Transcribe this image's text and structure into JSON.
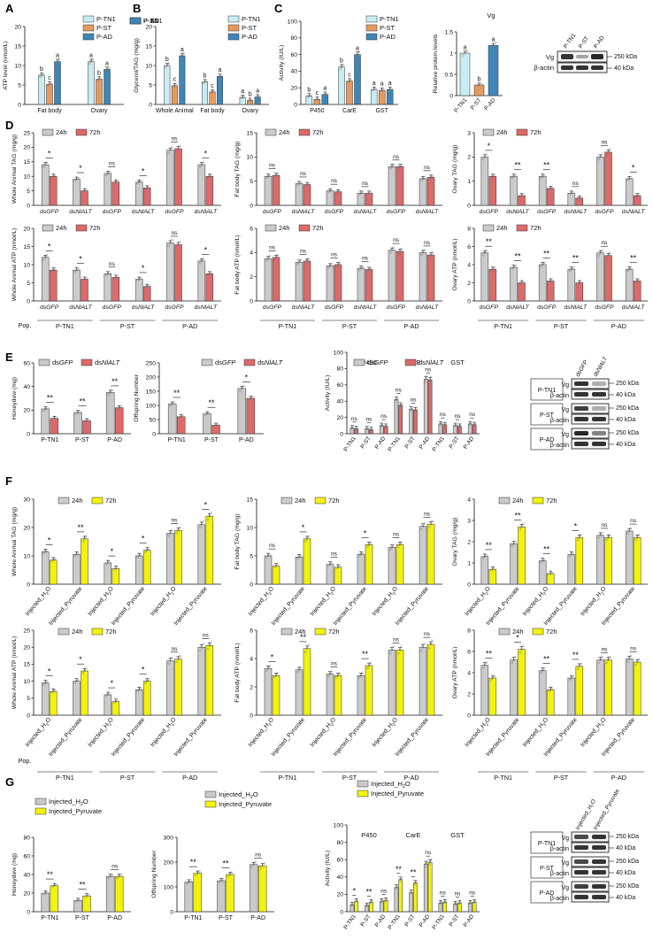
{
  "colors": {
    "tn1": "#c9ecf2",
    "st": "#e49a60",
    "ad": "#3f86b8",
    "h24": "#cbcbcb",
    "h72_red": "#dc6a6a",
    "h72_yel": "#f2f20c",
    "gfp": "#c9c9c9",
    "nialt": "#dc6a6a",
    "h2o": "#c9c9c9",
    "pyr": "#f2f20c"
  },
  "panels": {
    "A": "A",
    "B": "B",
    "C": "C",
    "D": "D",
    "E": "E",
    "F": "F",
    "G": "G"
  },
  "common": {
    "pop": "Pop.",
    "sig1": "*",
    "sig2": "**",
    "ns": "ns",
    "kda250": "250 kDa",
    "kda40": "40 kDa",
    "vg": "Vg",
    "actin": "β-actin"
  },
  "chart_data": [
    {
      "id": "A",
      "type": "bar",
      "ylabel": "ATP level (nmol/L)",
      "ylim": [
        0,
        20
      ],
      "yticks": [
        0,
        5,
        10,
        15,
        20
      ],
      "categories": [
        "Fat body",
        "Ovary"
      ],
      "series": [
        {
          "name": "P-TN1",
          "values": [
            7.5,
            11
          ]
        },
        {
          "name": "P-ST",
          "values": [
            5.2,
            6.5
          ]
        },
        {
          "name": "P-AD",
          "values": [
            11,
            9
          ]
        }
      ],
      "letters": [
        [
          "b",
          "c",
          "a"
        ],
        [
          "a",
          "b",
          "a"
        ]
      ]
    },
    {
      "id": "B",
      "type": "bar",
      "ylabel": "Glycerol/TAG (mg/g)",
      "ylim": [
        0,
        20
      ],
      "yticks": [
        0,
        5,
        10,
        15,
        20
      ],
      "categories": [
        "Whole Animal",
        "Fat body",
        "Ovary"
      ],
      "series": [
        {
          "name": "P-TN1",
          "values": [
            10,
            5.8,
            1.8
          ]
        },
        {
          "name": "P-ST",
          "values": [
            4.8,
            3.2,
            1.0
          ]
        },
        {
          "name": "P-AD",
          "values": [
            12.5,
            7.2,
            1.9
          ]
        }
      ],
      "letters": [
        [
          "b",
          "c",
          "a"
        ],
        [
          "b",
          "c",
          "a"
        ],
        [
          "a",
          "b",
          "a"
        ]
      ]
    },
    {
      "id": "C1",
      "type": "bar",
      "ylabel": "Activity (IU/L)",
      "ylim": [
        0,
        100
      ],
      "yticks": [
        0,
        20,
        40,
        60,
        80,
        100
      ],
      "categories": [
        "P450",
        "CarE",
        "GST"
      ],
      "series": [
        {
          "name": "P-TN1",
          "values": [
            10,
            45,
            18
          ]
        },
        {
          "name": "P-ST",
          "values": [
            6,
            28,
            17
          ]
        },
        {
          "name": "P-AD",
          "values": [
            12,
            60,
            18
          ]
        }
      ],
      "letters": [
        [
          "b",
          "c",
          "a"
        ],
        [
          "b",
          "c",
          "a"
        ],
        [
          "a",
          "a",
          "a"
        ]
      ]
    },
    {
      "id": "C2",
      "type": "bar",
      "title": "Vg",
      "ylabel": "Relative protein levels",
      "ylim": [
        0,
        1.5
      ],
      "yticks": [
        0.0,
        0.5,
        1.0,
        1.5
      ],
      "categories": [
        "P-TN1",
        "P-ST",
        "P-AD"
      ],
      "values": [
        1.0,
        0.25,
        1.18
      ],
      "letters": [
        "a",
        "b",
        "a"
      ]
    },
    {
      "id": "D1",
      "type": "bar",
      "ylabel": "Whole Animal TAG (mg/g)",
      "ylim": [
        0,
        25
      ],
      "yticks": [
        0,
        5,
        10,
        15,
        20,
        25
      ],
      "categories": [
        "dsGFP",
        "dsNlALT",
        "dsGFP",
        "dsNlALT",
        "dsGFP",
        "dsNlALT"
      ],
      "series": [
        {
          "name": "24h",
          "values": [
            14,
            9,
            11,
            8,
            19,
            14
          ]
        },
        {
          "name": "72h",
          "values": [
            10,
            5,
            8,
            6,
            19.5,
            10
          ]
        }
      ],
      "sig": [
        "*",
        "*",
        "ns",
        "*",
        "ns",
        "*"
      ]
    },
    {
      "id": "D2",
      "type": "bar",
      "ylabel": "Fat body TAG (mg/g)",
      "ylim": [
        0,
        15
      ],
      "yticks": [
        0,
        5,
        10,
        15
      ],
      "categories": [
        "dsGFP",
        "dsNlALT",
        "dsGFP",
        "dsNlALT",
        "dsGFP",
        "dsNlALT"
      ],
      "series": [
        {
          "name": "24h",
          "values": [
            6,
            4.5,
            3,
            2.5,
            8,
            5.5
          ]
        },
        {
          "name": "72h",
          "values": [
            6.2,
            4.3,
            2.8,
            2.5,
            8,
            5.8
          ]
        }
      ],
      "sig": [
        "ns",
        "ns",
        "ns",
        "ns",
        "ns",
        "ns"
      ]
    },
    {
      "id": "D3",
      "type": "bar",
      "ylabel": "Ovary TAG (mg/g)",
      "ylim": [
        0,
        3
      ],
      "yticks": [
        0,
        1,
        2,
        3
      ],
      "categories": [
        "dsGFP",
        "dsNlALT",
        "dsGFP",
        "dsNlALT",
        "dsGFP",
        "dsNlALT"
      ],
      "series": [
        {
          "name": "24h",
          "values": [
            2.0,
            1.2,
            1.2,
            0.5,
            2.0,
            1.1
          ]
        },
        {
          "name": "72h",
          "values": [
            1.2,
            0.4,
            0.7,
            0.3,
            2.2,
            0.4
          ]
        }
      ],
      "sig": [
        "*",
        "**",
        "**",
        "ns",
        "ns",
        "*"
      ]
    },
    {
      "id": "D4",
      "type": "bar",
      "ylabel": "Whole Animal ATP (nmol/L)",
      "ylim": [
        0,
        20
      ],
      "yticks": [
        0,
        5,
        10,
        15,
        20
      ],
      "categories": [
        "dsGFP",
        "dsNlALT",
        "dsGFP",
        "dsNlALT",
        "dsGFP",
        "dsNlALT"
      ],
      "series": [
        {
          "name": "24h",
          "values": [
            12,
            8.5,
            7.5,
            6,
            16,
            11
          ]
        },
        {
          "name": "72h",
          "values": [
            8.5,
            6,
            6.5,
            4,
            15.5,
            7.5
          ]
        }
      ],
      "sig": [
        "*",
        "*",
        "ns",
        "*",
        "ns",
        "*"
      ]
    },
    {
      "id": "D5",
      "type": "bar",
      "ylabel": "Fat body ATP (nmol/L)",
      "ylim": [
        0,
        6
      ],
      "yticks": [
        0,
        2,
        4,
        6
      ],
      "categories": [
        "dsGFP",
        "dsNlALT",
        "dsGFP",
        "dsNlALT",
        "dsGFP",
        "dsNlALT"
      ],
      "series": [
        {
          "name": "24h",
          "values": [
            3.5,
            3.2,
            2.9,
            2.7,
            4.2,
            4.0
          ]
        },
        {
          "name": "72h",
          "values": [
            3.6,
            3.3,
            3.0,
            2.6,
            4.1,
            3.8
          ]
        }
      ],
      "sig": [
        "ns",
        "ns",
        "ns",
        "ns",
        "ns",
        "ns"
      ]
    },
    {
      "id": "D6",
      "type": "bar",
      "ylabel": "Ovary ATP (nmol/L)",
      "ylim": [
        0,
        8
      ],
      "yticks": [
        0,
        2,
        4,
        6,
        8
      ],
      "categories": [
        "dsGFP",
        "dsNlALT",
        "dsGFP",
        "dsNlALT",
        "dsGFP",
        "dsNlALT"
      ],
      "series": [
        {
          "name": "24h",
          "values": [
            5.3,
            3.7,
            4.0,
            3.5,
            5.3,
            3.5
          ]
        },
        {
          "name": "72h",
          "values": [
            3.5,
            2.0,
            2.2,
            2.0,
            5.0,
            2.2
          ]
        }
      ],
      "sig": [
        "**",
        "**",
        "**",
        "**",
        "ns",
        "**"
      ]
    },
    {
      "id": "E1",
      "type": "bar",
      "ylabel": "Honeydew (mg)",
      "ylim": [
        0,
        60
      ],
      "yticks": [
        0,
        20,
        40,
        60
      ],
      "categories": [
        "P-TN1",
        "P-ST",
        "P-AD"
      ],
      "series": [
        {
          "name": "dsGFP",
          "values": [
            21,
            18,
            35
          ]
        },
        {
          "name": "dsNlALT",
          "values": [
            13,
            11,
            22
          ]
        }
      ],
      "sig": [
        "**",
        "**",
        "**"
      ]
    },
    {
      "id": "E2",
      "type": "bar",
      "ylabel": "Offspring Number",
      "ylim": [
        0,
        250
      ],
      "yticks": [
        0,
        50,
        100,
        150,
        200,
        250
      ],
      "categories": [
        "P-TN1",
        "P-ST",
        "P-AD"
      ],
      "series": [
        {
          "name": "dsGFP",
          "values": [
            105,
            70,
            160
          ]
        },
        {
          "name": "dsNlALT",
          "values": [
            60,
            30,
            125
          ]
        }
      ],
      "sig": [
        "**",
        "**",
        "*"
      ]
    },
    {
      "id": "E3",
      "type": "bar",
      "ylabel": "Activity (IU/L)",
      "ylim": [
        0,
        100
      ],
      "yticks": [
        0,
        20,
        40,
        60,
        80,
        100
      ],
      "groups": [
        "P450",
        "CarE",
        "GST"
      ],
      "categories": [
        "P-TN1",
        "P-ST",
        "P-AD",
        "P-TN1",
        "P-ST",
        "P-AD",
        "P-TN1",
        "P-ST",
        "P-AD"
      ],
      "series": [
        {
          "name": "dsGFP",
          "values": [
            7,
            6,
            10,
            42,
            30,
            67,
            12,
            10,
            12
          ]
        },
        {
          "name": "dsNlALT",
          "values": [
            6,
            5,
            9,
            35,
            29,
            66,
            11,
            9,
            11
          ]
        }
      ],
      "sig": [
        "ns",
        "ns",
        "ns",
        "ns",
        "ns",
        "ns",
        "ns",
        "ns",
        "ns"
      ]
    },
    {
      "id": "F1",
      "type": "bar",
      "ylabel": "Whole Animal TAG (mg/g)",
      "ylim": [
        0,
        30
      ],
      "yticks": [
        0,
        10,
        20,
        30
      ],
      "categories": [
        "Injected_H2O",
        "Injected_Pyruvate",
        "Injected_H2O",
        "Injected_Pyruvate",
        "Injected_H2O",
        "Injected_Pyruvate"
      ],
      "series": [
        {
          "name": "24h",
          "values": [
            11.5,
            10.5,
            7.5,
            10,
            18,
            21
          ]
        },
        {
          "name": "72h",
          "values": [
            8.5,
            16,
            5.5,
            12,
            19,
            24
          ]
        }
      ],
      "sig": [
        "*",
        "**",
        "*",
        "*",
        "ns",
        "*"
      ]
    },
    {
      "id": "F2",
      "type": "bar",
      "ylabel": "Fat body TAG (mg/g)",
      "ylim": [
        0,
        15
      ],
      "yticks": [
        0,
        5,
        10,
        15
      ],
      "categories": [
        "Injected_H2O",
        "Injected_Pyruvate",
        "Injected_H2O",
        "Injected_Pyruvate",
        "Injected_H2O",
        "Injected_Pyruvate"
      ],
      "series": [
        {
          "name": "24h",
          "values": [
            5,
            4.8,
            3.5,
            5.3,
            6.5,
            10.2
          ]
        },
        {
          "name": "72h",
          "values": [
            3.2,
            8.0,
            3.0,
            7.0,
            7.0,
            10.6
          ]
        }
      ],
      "sig": [
        "ns",
        "*",
        "ns",
        "*",
        "ns",
        "ns"
      ]
    },
    {
      "id": "F3",
      "type": "bar",
      "ylabel": "Ovary TAG (mg/g)",
      "ylim": [
        0,
        4
      ],
      "yticks": [
        0,
        1,
        2,
        3,
        4
      ],
      "categories": [
        "Injected_H2O",
        "Injected_Pyruvate",
        "Injected_H2O",
        "Injected_Pyruvate",
        "Injected_H2O",
        "Injected_Pyruvate"
      ],
      "series": [
        {
          "name": "24h",
          "values": [
            1.3,
            1.9,
            1.1,
            1.4,
            2.3,
            2.5
          ]
        },
        {
          "name": "72h",
          "values": [
            0.7,
            2.7,
            0.5,
            2.2,
            2.2,
            2.2
          ]
        }
      ],
      "sig": [
        "**",
        "**",
        "**",
        "*",
        "ns",
        "ns"
      ]
    },
    {
      "id": "F4",
      "type": "bar",
      "ylabel": "Whole Animal ATP (nmol/L)",
      "ylim": [
        0,
        25
      ],
      "yticks": [
        0,
        5,
        10,
        15,
        20,
        25
      ],
      "categories": [
        "Injected_H2O",
        "Injected_Pyruvate",
        "Injected_H2O",
        "Injected_Pyruvate",
        "Injected_H2O",
        "Injected_Pyruvate"
      ],
      "series": [
        {
          "name": "24h",
          "values": [
            9.5,
            10,
            6,
            7.5,
            16,
            20
          ]
        },
        {
          "name": "72h",
          "values": [
            7,
            13,
            4,
            10,
            16.5,
            20.5
          ]
        }
      ],
      "sig": [
        "*",
        "*",
        "*",
        "*",
        "ns",
        "ns"
      ]
    },
    {
      "id": "F5",
      "type": "bar",
      "ylabel": "Fat body ATP (nmol/L)",
      "ylim": [
        0,
        6
      ],
      "yticks": [
        0,
        2,
        4,
        6
      ],
      "categories": [
        "Injected_H2O",
        "Injected_Pyruvate",
        "Injected_H2O",
        "Injected_Pyruvate",
        "Injected_H2O",
        "Injected_Pyruvate"
      ],
      "series": [
        {
          "name": "24h",
          "values": [
            3.3,
            3.2,
            2.9,
            2.8,
            4.6,
            4.8
          ]
        },
        {
          "name": "72h",
          "values": [
            2.8,
            4.7,
            2.8,
            3.5,
            4.6,
            5.0
          ]
        }
      ],
      "sig": [
        "*",
        "**",
        "ns",
        "**",
        "ns",
        "ns"
      ]
    },
    {
      "id": "F6",
      "type": "bar",
      "ylabel": "Ovary ATP (nmol/L)",
      "ylim": [
        0,
        8
      ],
      "yticks": [
        0,
        2,
        4,
        6,
        8
      ],
      "categories": [
        "Injected_H2O",
        "Injected_Pyruvate",
        "Injected_H2O",
        "Injected_Pyruvate",
        "Injected_H2O",
        "Injected_Pyruvate"
      ],
      "series": [
        {
          "name": "24h",
          "values": [
            4.7,
            5.2,
            4.2,
            3.5,
            5.2,
            5.3
          ]
        },
        {
          "name": "72h",
          "values": [
            3.5,
            6.2,
            2.4,
            4.6,
            5.2,
            5.0
          ]
        }
      ],
      "sig": [
        "**",
        "*",
        "**",
        "**",
        "ns",
        "ns"
      ]
    },
    {
      "id": "G1",
      "type": "bar",
      "ylabel": "Honeydew (mg)",
      "ylim": [
        0,
        80
      ],
      "yticks": [
        0,
        20,
        40,
        60,
        80
      ],
      "categories": [
        "P-TN1",
        "P-ST",
        "P-AD"
      ],
      "series": [
        {
          "name": "Injected_H2O",
          "values": [
            20,
            12,
            38
          ]
        },
        {
          "name": "Injected_Pyruvate",
          "values": [
            28,
            17,
            38
          ]
        }
      ],
      "sig": [
        "**",
        "**",
        "ns"
      ]
    },
    {
      "id": "G2",
      "type": "bar",
      "ylabel": "Offspring Number",
      "ylim": [
        0,
        300
      ],
      "yticks": [
        0,
        100,
        200,
        300
      ],
      "categories": [
        "P-TN1",
        "P-ST",
        "P-AD"
      ],
      "series": [
        {
          "name": "Injected_H2O",
          "values": [
            120,
            125,
            190
          ]
        },
        {
          "name": "Injected_Pyruvate",
          "values": [
            155,
            150,
            185
          ]
        }
      ],
      "sig": [
        "**",
        "**",
        "ns"
      ]
    },
    {
      "id": "G3",
      "type": "bar",
      "ylabel": "Activity (IU/L)",
      "ylim": [
        0,
        100
      ],
      "yticks": [
        0,
        20,
        40,
        60,
        80,
        100
      ],
      "groups": [
        "P450",
        "CarE",
        "GST"
      ],
      "categories": [
        "P-TN1",
        "P-ST",
        "P-AD",
        "P-TN1",
        "P-ST",
        "P-AD",
        "P-TN1",
        "P-ST",
        "P-AD"
      ],
      "series": [
        {
          "name": "Injected_H2O",
          "values": [
            8,
            7,
            12,
            28,
            22,
            55,
            10,
            9,
            10
          ]
        },
        {
          "name": "Injected_Pyruvate",
          "values": [
            12,
            11,
            13,
            37,
            33,
            57,
            11,
            10,
            11
          ]
        }
      ],
      "sig": [
        "*",
        "**",
        "ns",
        "**",
        "**",
        "ns",
        "ns",
        "ns",
        "ns"
      ]
    }
  ],
  "populations": [
    "P-TN1",
    "P-ST",
    "P-AD"
  ],
  "legends": {
    "pops": [
      "P-TN1",
      "P-ST",
      "P-AD"
    ],
    "time": [
      "24h",
      "72h"
    ],
    "rnai": [
      "dsGFP",
      "dsNlALT"
    ],
    "inj": [
      "Injected_H2O",
      "Injected_Pyruvate"
    ]
  },
  "blots": {
    "C": {
      "cols": [
        "P-TN1",
        "P-ST",
        "P-AD"
      ]
    },
    "E": {
      "cols": [
        "dsGFP",
        "dsNlALT"
      ],
      "rows": [
        "P-TN1",
        "P-ST",
        "P-AD"
      ]
    },
    "G": {
      "cols": [
        "Injected_H2O",
        "Injected_Pyruvate"
      ],
      "rows": [
        "P-TN1",
        "P-ST",
        "P-AD"
      ]
    }
  }
}
